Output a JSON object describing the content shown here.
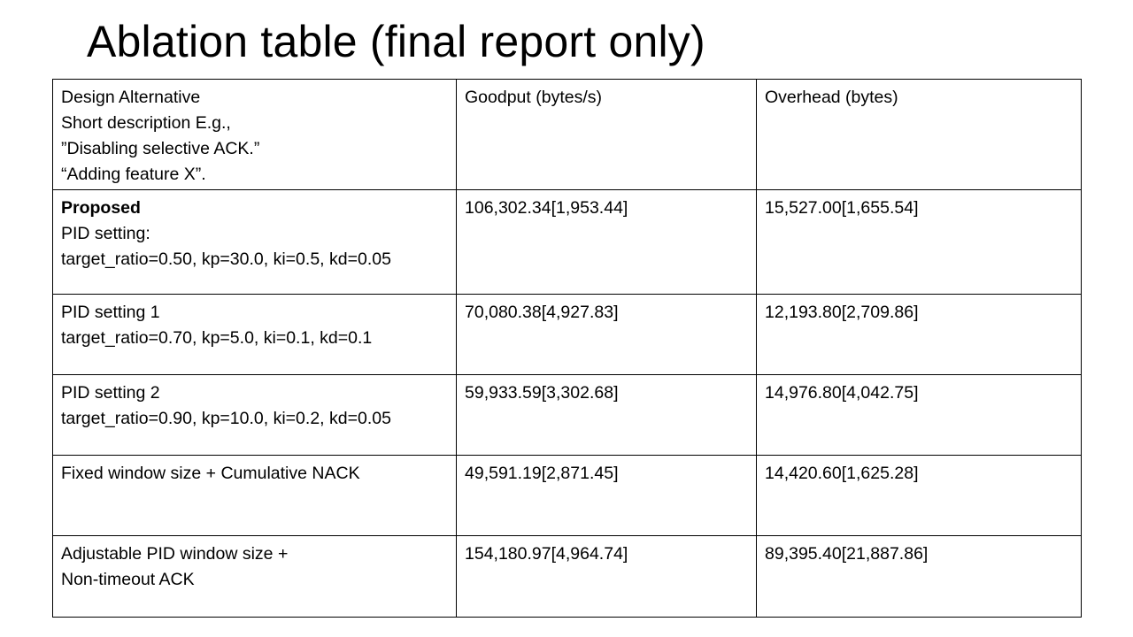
{
  "slide": {
    "title": "Ablation table (final report only)"
  },
  "table": {
    "header": {
      "alternative_lines": [
        "Design Alternative",
        "Short description E.g.,",
        " ”Disabling selective ACK.”",
        " “Adding feature X”."
      ],
      "goodput": "Goodput (bytes/s)",
      "overhead": "Overhead (bytes)"
    },
    "rows": [
      {
        "alternative_lines": [
          "Proposed",
          "PID setting:",
          "target_ratio=0.50, kp=30.0, ki=0.5, kd=0.05"
        ],
        "goodput": "106,302.34[1,953.44]",
        "overhead": "15,527.00[1,655.54]"
      },
      {
        "alternative_lines": [
          "PID setting 1",
          "target_ratio=0.70, kp=5.0, ki=0.1, kd=0.1"
        ],
        "goodput": "70,080.38[4,927.83]",
        "overhead": "12,193.80[2,709.86]"
      },
      {
        "alternative_lines": [
          "PID setting 2",
          "target_ratio=0.90, kp=10.0, ki=0.2, kd=0.05"
        ],
        "goodput": "59,933.59[3,302.68]",
        "overhead": "14,976.80[4,042.75]"
      },
      {
        "alternative_lines": [
          "Fixed window size + Cumulative NACK"
        ],
        "goodput": "49,591.19[2,871.45]",
        "overhead": "14,420.60[1,625.28]"
      },
      {
        "alternative_lines": [
          "Adjustable PID window size +",
          "Non-timeout ACK"
        ],
        "goodput": "154,180.97[4,964.74]",
        "overhead": "89,395.40[21,887.86]"
      }
    ]
  }
}
